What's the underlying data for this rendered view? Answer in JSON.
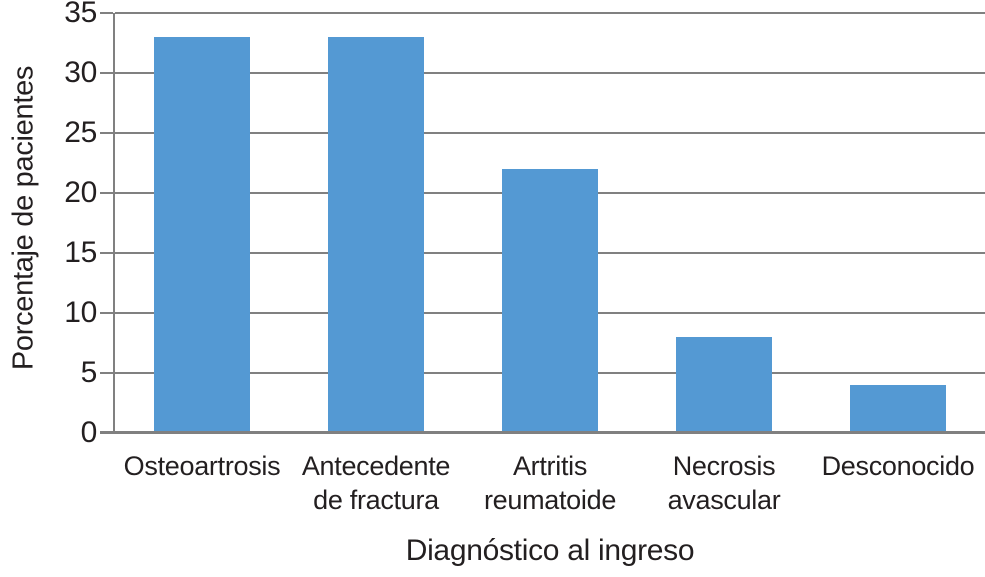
{
  "chart_data": {
    "type": "bar",
    "categories": [
      "Osteoartrosis",
      "Antecedente\nde fractura",
      "Artritis\nreumatoide",
      "Necrosis\navascular",
      "Desconocido"
    ],
    "values": [
      33,
      33,
      22,
      8,
      4
    ],
    "title": "",
    "xlabel": "Diagnóstico al ingreso",
    "ylabel": "Porcentaje de pacientes",
    "ylim": [
      0,
      35
    ],
    "yticks": [
      0,
      5,
      10,
      15,
      20,
      25,
      30,
      35
    ],
    "grid": true,
    "legend": false,
    "colors": {
      "bar": "#5499d3",
      "grid": "#808080",
      "axis": "#808080",
      "text": "#231f20",
      "background": "#ffffff"
    }
  }
}
